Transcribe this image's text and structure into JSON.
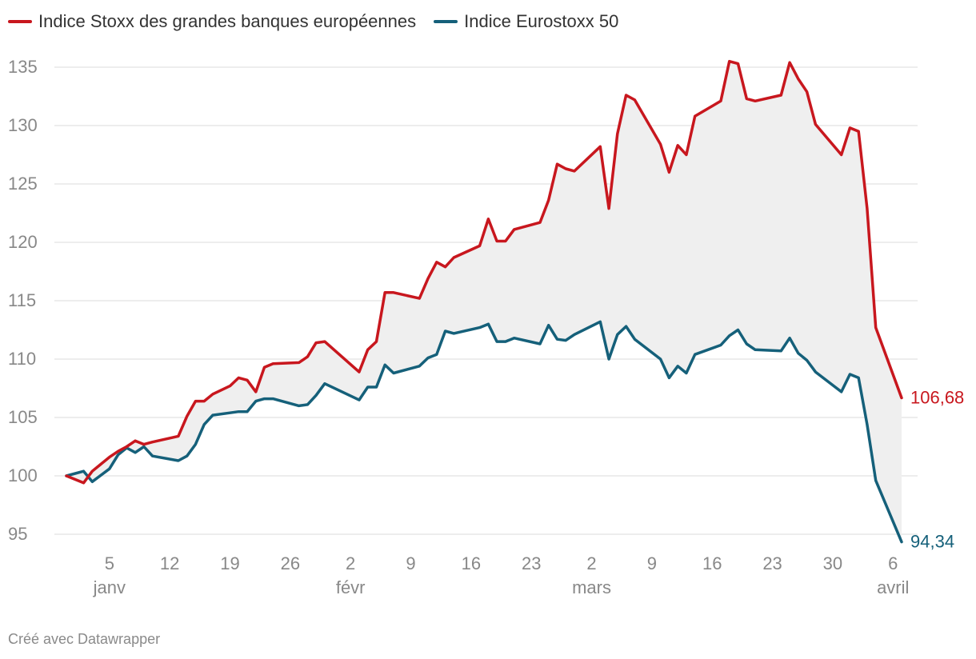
{
  "legend": {
    "series_a": "Indice Stoxx des grandes banques européennes",
    "series_b": "Indice Eurostoxx 50"
  },
  "credit": "Créé avec Datawrapper",
  "colors": {
    "series_a": "#c8171e",
    "series_b": "#15607a",
    "fill": "#efefef",
    "grid": "#e2e2e2",
    "tick": "#888888"
  },
  "chart_data": {
    "type": "line",
    "title": "",
    "xlabel": "",
    "ylabel": "",
    "ylim": [
      93,
      137
    ],
    "y_ticks": [
      95,
      100,
      105,
      110,
      115,
      120,
      125,
      130,
      135
    ],
    "x_ticks": [
      {
        "day": 5,
        "label": "5",
        "month": "janv"
      },
      {
        "day": 12,
        "label": "12",
        "month": ""
      },
      {
        "day": 19,
        "label": "19",
        "month": ""
      },
      {
        "day": 26,
        "label": "26",
        "month": ""
      },
      {
        "day": 33,
        "label": "2",
        "month": "févr"
      },
      {
        "day": 40,
        "label": "9",
        "month": ""
      },
      {
        "day": 47,
        "label": "16",
        "month": ""
      },
      {
        "day": 54,
        "label": "23",
        "month": ""
      },
      {
        "day": 61,
        "label": "2",
        "month": "mars"
      },
      {
        "day": 68,
        "label": "9",
        "month": ""
      },
      {
        "day": 75,
        "label": "16",
        "month": ""
      },
      {
        "day": 82,
        "label": "23",
        "month": ""
      },
      {
        "day": 89,
        "label": "30",
        "month": ""
      },
      {
        "day": 96,
        "label": "6",
        "month": "avril"
      }
    ],
    "x": [
      0,
      2,
      3,
      5,
      6,
      7,
      8,
      9,
      10,
      13,
      14,
      15,
      16,
      17,
      19,
      20,
      21,
      22,
      23,
      24,
      27,
      28,
      29,
      30,
      34,
      35,
      36,
      37,
      38,
      41,
      42,
      43,
      44,
      45,
      48,
      49,
      50,
      51,
      52,
      55,
      56,
      57,
      58,
      59,
      62,
      63,
      64,
      65,
      66,
      69,
      70,
      71,
      72,
      73,
      76,
      77,
      78,
      79,
      80,
      83,
      84,
      85,
      86,
      87,
      90,
      91,
      92,
      93,
      94,
      97
    ],
    "series": [
      {
        "name": "Indice Stoxx des grandes banques européennes",
        "end_label": "106,68",
        "values": [
          100,
          99.4,
          100.4,
          101.6,
          102.1,
          102.5,
          103,
          102.7,
          102.9,
          103.4,
          105.1,
          106.4,
          106.4,
          107,
          107.7,
          108.4,
          108.2,
          107.2,
          109.3,
          109.6,
          109.7,
          110.2,
          111.4,
          111.5,
          108.9,
          110.8,
          111.5,
          115.7,
          115.7,
          115.2,
          116.9,
          118.3,
          117.9,
          118.7,
          119.7,
          122,
          120.1,
          120.1,
          121.1,
          121.7,
          123.6,
          126.7,
          126.3,
          126.1,
          128.2,
          122.9,
          129.3,
          132.6,
          132.2,
          128.4,
          126,
          128.3,
          127.5,
          130.8,
          132.1,
          135.5,
          135.3,
          132.3,
          132.1,
          132.6,
          135.4,
          134,
          132.9,
          130.1,
          127.5,
          129.8,
          129.5,
          122.9,
          112.7,
          106.68
        ]
      },
      {
        "name": "Indice Eurostoxx 50",
        "end_label": "94,34",
        "values": [
          100,
          100.4,
          99.5,
          100.6,
          101.8,
          102.4,
          102,
          102.5,
          101.7,
          101.3,
          101.7,
          102.7,
          104.4,
          105.2,
          105.4,
          105.5,
          105.5,
          106.4,
          106.6,
          106.6,
          106,
          106.1,
          106.9,
          107.9,
          106.5,
          107.6,
          107.6,
          109.5,
          108.8,
          109.4,
          110.1,
          110.4,
          112.4,
          112.2,
          112.7,
          113,
          111.5,
          111.5,
          111.8,
          111.3,
          112.9,
          111.7,
          111.6,
          112.1,
          113.2,
          110,
          112.1,
          112.8,
          111.7,
          110,
          108.4,
          109.4,
          108.8,
          110.4,
          111.2,
          112,
          112.5,
          111.3,
          110.8,
          110.7,
          111.8,
          110.5,
          109.9,
          108.9,
          107.2,
          108.7,
          108.4,
          104.4,
          99.6,
          94.34
        ]
      }
    ]
  }
}
